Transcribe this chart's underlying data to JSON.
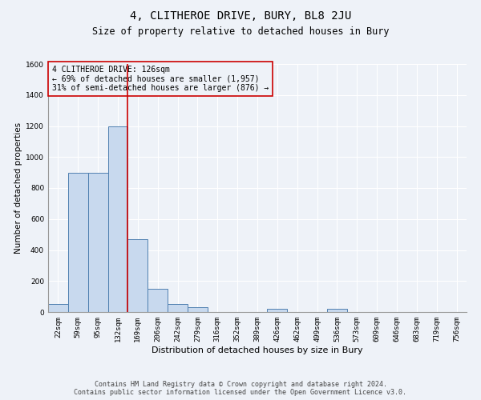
{
  "title": "4, CLITHEROE DRIVE, BURY, BL8 2JU",
  "subtitle": "Size of property relative to detached houses in Bury",
  "xlabel": "Distribution of detached houses by size in Bury",
  "ylabel": "Number of detached properties",
  "footnote1": "Contains HM Land Registry data © Crown copyright and database right 2024.",
  "footnote2": "Contains public sector information licensed under the Open Government Licence v3.0.",
  "annotation_line1": "4 CLITHEROE DRIVE: 126sqm",
  "annotation_line2": "← 69% of detached houses are smaller (1,957)",
  "annotation_line3": "31% of semi-detached houses are larger (876) →",
  "bar_categories": [
    "22sqm",
    "59sqm",
    "95sqm",
    "132sqm",
    "169sqm",
    "206sqm",
    "242sqm",
    "279sqm",
    "316sqm",
    "352sqm",
    "389sqm",
    "426sqm",
    "462sqm",
    "499sqm",
    "536sqm",
    "573sqm",
    "609sqm",
    "646sqm",
    "683sqm",
    "719sqm",
    "756sqm"
  ],
  "bar_values": [
    50,
    900,
    900,
    1200,
    470,
    150,
    50,
    30,
    0,
    0,
    0,
    20,
    0,
    0,
    20,
    0,
    0,
    0,
    0,
    0,
    0
  ],
  "bar_color": "#c8d9ee",
  "bar_edge_color": "#5080b0",
  "vline_color": "#cc0000",
  "vline_x": 3.5,
  "ylim": [
    0,
    1600
  ],
  "yticks": [
    0,
    200,
    400,
    600,
    800,
    1000,
    1200,
    1400,
    1600
  ],
  "bg_color": "#eef2f8",
  "grid_color": "#ffffff",
  "title_fontsize": 10,
  "subtitle_fontsize": 8.5,
  "ylabel_fontsize": 7.5,
  "xlabel_fontsize": 8,
  "tick_fontsize": 6.5,
  "annotation_fontsize": 7,
  "footnote_fontsize": 6
}
